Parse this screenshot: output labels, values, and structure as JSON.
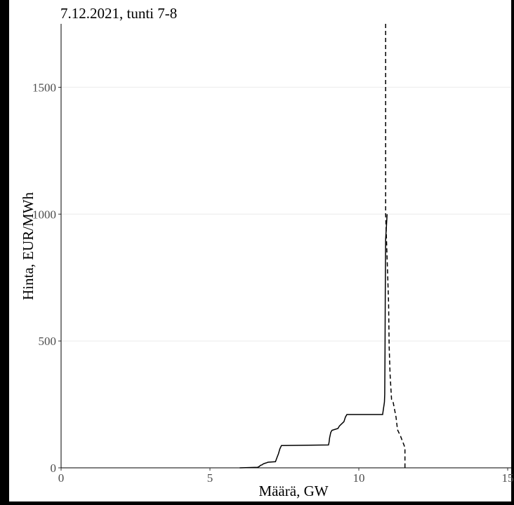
{
  "chart_data": {
    "type": "line",
    "title": "7.12.2021, tunti 7-8",
    "xlabel": "Määrä, GW",
    "ylabel": "Hinta, EUR/MWh",
    "xlim": [
      0,
      15
    ],
    "ylim": [
      0,
      1750
    ],
    "x_ticks": [
      "0",
      "5",
      "10",
      "15"
    ],
    "y_ticks": [
      "0",
      "500",
      "1000",
      "1500"
    ],
    "grid": "horizontal",
    "colors": {
      "line": "#000000",
      "grid": "#ebebeb",
      "tick_text": "#4d4d4d",
      "background": "#ffffff"
    },
    "series": [
      {
        "style": "solid",
        "x": [
          6.0,
          6.6,
          6.65,
          6.7,
          6.75,
          6.8,
          6.85,
          6.9,
          6.95,
          7.2,
          7.25,
          7.3,
          7.35,
          7.4,
          8.98,
          9.0,
          9.02,
          9.04,
          9.06,
          9.1,
          9.3,
          9.35,
          9.5,
          9.55,
          9.6,
          10.8,
          10.83,
          10.85,
          10.86,
          10.87,
          10.88,
          10.89,
          10.9,
          10.95
        ],
        "y": [
          0,
          2,
          5,
          10,
          12,
          16,
          18,
          20,
          22,
          24,
          40,
          55,
          75,
          88,
          90,
          100,
          118,
          130,
          140,
          148,
          155,
          165,
          182,
          200,
          210,
          210,
          235,
          250,
          260,
          290,
          450,
          700,
          900,
          1000
        ]
      },
      {
        "style": "dashed",
        "x": [
          10.9,
          10.9,
          10.93,
          11.0,
          11.02,
          11.05,
          11.1,
          11.15,
          11.25,
          11.3,
          11.4,
          11.55,
          11.55
        ],
        "y": [
          1750,
          1000,
          900,
          650,
          480,
          370,
          270,
          260,
          200,
          150,
          125,
          80,
          0
        ]
      }
    ]
  }
}
